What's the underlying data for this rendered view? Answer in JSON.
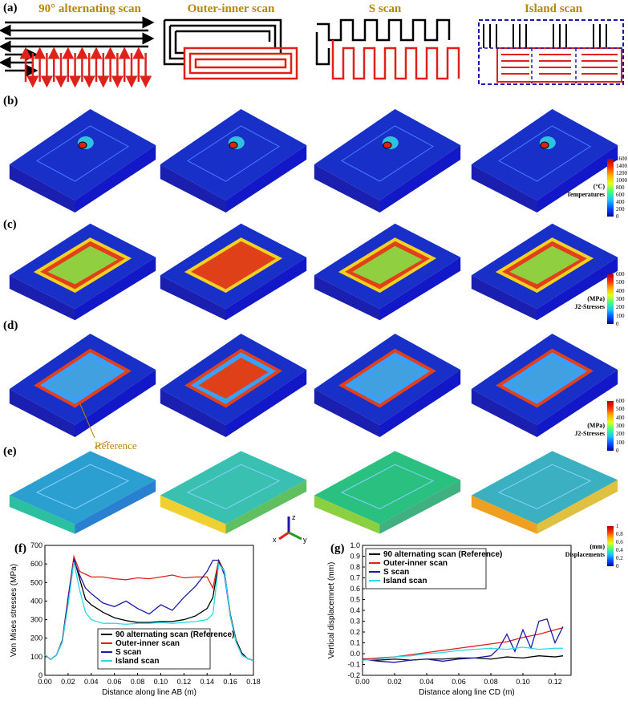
{
  "row_labels": {
    "a": "(a)",
    "b": "(b)",
    "c": "(c)",
    "d": "(d)",
    "e": "(e)",
    "f": "(f)",
    "g": "(g)"
  },
  "scan_titles": [
    "90° alternating scan",
    "Outer-inner scan",
    "S scan",
    "Island scan"
  ],
  "reference_label": "Reference",
  "colorbars": [
    {
      "unit": "(°C)",
      "name": "Temperatures",
      "ticks": [
        "1600",
        "1400",
        "1200",
        "1000",
        "800",
        "600",
        "400",
        "200",
        "0"
      ]
    },
    {
      "unit": "(MPa)",
      "name": "J2-Stresses",
      "ticks": [
        "600",
        "500",
        "400",
        "300",
        "200",
        "100",
        "0"
      ]
    },
    {
      "unit": "(MPa)",
      "name": "J2-Stresses",
      "ticks": [
        "600",
        "500",
        "400",
        "300",
        "200",
        "100",
        "0"
      ]
    },
    {
      "unit": "(mm)",
      "name": "Displacements",
      "ticks": [
        "1",
        "0.8",
        "0.6",
        "0.4",
        "0.2",
        "0"
      ]
    }
  ],
  "triad": {
    "z": "z",
    "x": "x",
    "y": "y"
  },
  "colors": {
    "black": "#000000",
    "red": "#e0201b",
    "blue": "#1a1aaa",
    "cyan": "#2fd8e8",
    "gold": "#b8860b"
  },
  "chart_data": [
    {
      "type": "line",
      "title": "",
      "xlabel": "Distance along line AB (m)",
      "ylabel": "Von Mises stresses (MPa)",
      "xlim": [
        0,
        0.18
      ],
      "ylim": [
        0,
        700
      ],
      "xticks": [
        "0.00",
        "0.02",
        "0.04",
        "0.06",
        "0.08",
        "0.10",
        "0.12",
        "0.14",
        "0.16",
        "0.18"
      ],
      "yticks": [
        "0",
        "100",
        "200",
        "300",
        "400",
        "500",
        "600",
        "700"
      ],
      "series": [
        {
          "name": "90 alternating scan (Reference)",
          "color": "#000000",
          "x": [
            0,
            0.005,
            0.01,
            0.015,
            0.02,
            0.025,
            0.03,
            0.035,
            0.04,
            0.05,
            0.06,
            0.07,
            0.08,
            0.09,
            0.1,
            0.11,
            0.12,
            0.13,
            0.14,
            0.145,
            0.15,
            0.155,
            0.16,
            0.165,
            0.17,
            0.175,
            0.18
          ],
          "y": [
            110,
            85,
            110,
            180,
            390,
            630,
            520,
            410,
            380,
            340,
            310,
            295,
            285,
            285,
            290,
            290,
            300,
            320,
            360,
            420,
            610,
            560,
            330,
            190,
            120,
            90,
            80
          ]
        },
        {
          "name": "Outer-inner scan",
          "color": "#e0201b",
          "x": [
            0,
            0.005,
            0.01,
            0.015,
            0.02,
            0.025,
            0.03,
            0.035,
            0.04,
            0.05,
            0.06,
            0.07,
            0.08,
            0.09,
            0.1,
            0.11,
            0.12,
            0.13,
            0.14,
            0.145,
            0.15,
            0.155,
            0.16,
            0.165,
            0.17,
            0.175,
            0.18
          ],
          "y": [
            110,
            85,
            110,
            190,
            420,
            640,
            560,
            545,
            530,
            530,
            520,
            515,
            525,
            520,
            530,
            540,
            525,
            530,
            530,
            470,
            620,
            560,
            320,
            180,
            110,
            90,
            80
          ]
        },
        {
          "name": "S scan",
          "color": "#1a1aaa",
          "x": [
            0,
            0.005,
            0.01,
            0.015,
            0.02,
            0.025,
            0.03,
            0.035,
            0.04,
            0.05,
            0.06,
            0.07,
            0.08,
            0.09,
            0.1,
            0.11,
            0.12,
            0.13,
            0.14,
            0.145,
            0.15,
            0.155,
            0.16,
            0.165,
            0.17,
            0.175,
            0.18
          ],
          "y": [
            110,
            85,
            110,
            185,
            410,
            620,
            540,
            470,
            440,
            390,
            370,
            400,
            360,
            330,
            380,
            350,
            420,
            480,
            560,
            620,
            620,
            540,
            320,
            180,
            110,
            90,
            80
          ]
        },
        {
          "name": "Island scan",
          "color": "#2fd8e8",
          "x": [
            0,
            0.005,
            0.01,
            0.015,
            0.02,
            0.025,
            0.03,
            0.035,
            0.04,
            0.05,
            0.06,
            0.07,
            0.08,
            0.09,
            0.1,
            0.11,
            0.12,
            0.13,
            0.14,
            0.145,
            0.15,
            0.155,
            0.16,
            0.165,
            0.17,
            0.175,
            0.18
          ],
          "y": [
            110,
            85,
            110,
            180,
            380,
            610,
            460,
            340,
            300,
            280,
            280,
            275,
            280,
            280,
            285,
            280,
            285,
            290,
            300,
            330,
            600,
            560,
            320,
            180,
            110,
            90,
            80
          ]
        }
      ],
      "legend": "bottom-center"
    },
    {
      "type": "line",
      "title": "",
      "xlabel": "Distance along line CD (m)",
      "ylabel": "Vertical displacemnet (mm)",
      "xlim": [
        0,
        0.13
      ],
      "ylim": [
        -0.2,
        1.0
      ],
      "xticks": [
        "0.00",
        "0.02",
        "0.04",
        "0.06",
        "0.08",
        "0.10",
        "0.12"
      ],
      "yticks": [
        "-0.2",
        "-0.1",
        "0.0",
        "0.1",
        "0.2",
        "0.3",
        "0.4",
        "0.5",
        "0.6",
        "0.7",
        "0.8",
        "0.9",
        "1.0"
      ],
      "series": [
        {
          "name": "90 alternating scan (Reference)",
          "color": "#000000",
          "x": [
            0,
            0.01,
            0.02,
            0.03,
            0.04,
            0.05,
            0.06,
            0.07,
            0.08,
            0.09,
            0.1,
            0.11,
            0.12,
            0.125
          ],
          "y": [
            -0.05,
            -0.06,
            -0.05,
            -0.06,
            -0.05,
            -0.05,
            -0.04,
            -0.04,
            -0.05,
            -0.03,
            -0.04,
            -0.02,
            -0.03,
            -0.02
          ]
        },
        {
          "name": "Outer-inner scan",
          "color": "#e0201b",
          "x": [
            0,
            0.01,
            0.02,
            0.03,
            0.04,
            0.05,
            0.06,
            0.07,
            0.08,
            0.09,
            0.1,
            0.11,
            0.12,
            0.125
          ],
          "y": [
            -0.05,
            -0.04,
            -0.03,
            -0.01,
            0.01,
            0.03,
            0.05,
            0.07,
            0.09,
            0.11,
            0.15,
            0.18,
            0.22,
            0.24
          ]
        },
        {
          "name": "S scan",
          "color": "#1a1aaa",
          "x": [
            0,
            0.01,
            0.02,
            0.03,
            0.04,
            0.05,
            0.06,
            0.07,
            0.08,
            0.085,
            0.09,
            0.095,
            0.1,
            0.105,
            0.11,
            0.115,
            0.12,
            0.125
          ],
          "y": [
            -0.05,
            -0.07,
            -0.08,
            -0.06,
            -0.05,
            -0.07,
            -0.05,
            -0.04,
            -0.02,
            0.05,
            0.18,
            0.02,
            0.22,
            0.05,
            0.3,
            0.32,
            0.1,
            0.25
          ]
        },
        {
          "name": "Island scan",
          "color": "#2fd8e8",
          "x": [
            0,
            0.01,
            0.02,
            0.03,
            0.04,
            0.05,
            0.06,
            0.07,
            0.08,
            0.09,
            0.1,
            0.11,
            0.12,
            0.125
          ],
          "y": [
            -0.06,
            -0.05,
            -0.03,
            -0.02,
            0.0,
            0.01,
            0.03,
            0.04,
            0.05,
            0.04,
            0.06,
            0.04,
            0.05,
            0.05
          ]
        }
      ],
      "legend": "top-left"
    }
  ]
}
